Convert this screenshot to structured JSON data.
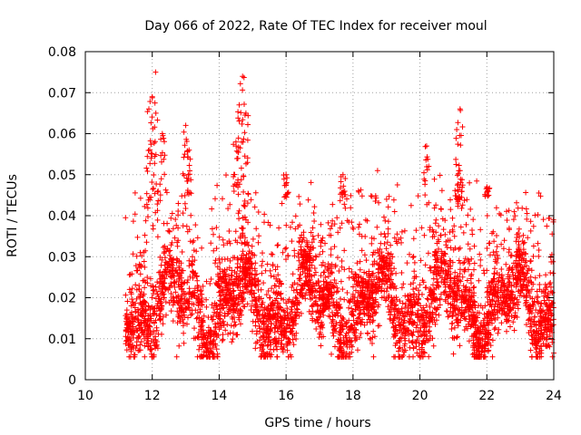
{
  "chart_data": {
    "type": "scatter",
    "title": "Day 066 of 2022, Rate Of TEC Index for receiver moul",
    "xlabel": "GPS time / hours",
    "ylabel": "ROTI / TECUs",
    "xlim": [
      10,
      24
    ],
    "ylim": [
      0,
      0.08
    ],
    "x_ticks": [
      10,
      12,
      14,
      16,
      18,
      20,
      22,
      24
    ],
    "x_tick_labels": [
      "10",
      "12",
      "14",
      "16",
      "18",
      "20",
      "22",
      "24"
    ],
    "y_ticks": [
      0,
      0.01,
      0.02,
      0.03,
      0.04,
      0.05,
      0.06,
      0.07,
      0.08
    ],
    "y_tick_labels": [
      "0",
      "0.01",
      "0.02",
      "0.03",
      "0.04",
      "0.05",
      "0.06",
      "0.07",
      "0.08"
    ],
    "grid": true,
    "marker": "+",
    "series": [
      {
        "name": "ROTI",
        "color": "#ff0000",
        "x_range": [
          11.2,
          24.0
        ],
        "typical_range": [
          0.007,
          0.045
        ],
        "peaks": [
          {
            "x": 12.1,
            "y": 0.075
          },
          {
            "x": 12.0,
            "y": 0.069
          },
          {
            "x": 11.9,
            "y": 0.066
          },
          {
            "x": 12.3,
            "y": 0.06
          },
          {
            "x": 13.0,
            "y": 0.062
          },
          {
            "x": 13.1,
            "y": 0.056
          },
          {
            "x": 14.7,
            "y": 0.074
          },
          {
            "x": 14.6,
            "y": 0.067
          },
          {
            "x": 14.8,
            "y": 0.065
          },
          {
            "x": 14.5,
            "y": 0.058
          },
          {
            "x": 16.0,
            "y": 0.05
          },
          {
            "x": 17.7,
            "y": 0.05
          },
          {
            "x": 20.2,
            "y": 0.057
          },
          {
            "x": 21.2,
            "y": 0.066
          },
          {
            "x": 21.1,
            "y": 0.061
          },
          {
            "x": 21.2,
            "y": 0.051
          },
          {
            "x": 22.0,
            "y": 0.047
          }
        ]
      }
    ]
  }
}
